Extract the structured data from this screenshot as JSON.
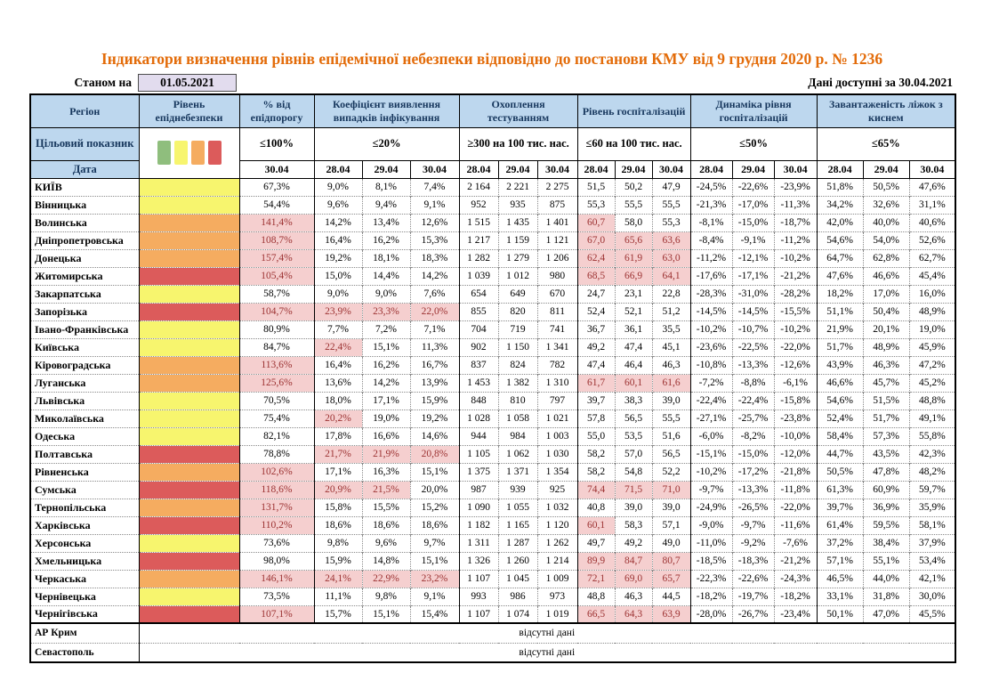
{
  "title": "Індикатори визначення рівнів епідемічної небезпеки відповідно до постанови КМУ від 9 грудня 2020 р. № 1236",
  "meta": {
    "as_of_label": "Станом на",
    "as_of_date": "01.05.2021",
    "available_label": "Дані доступні за",
    "available_date": "30.04.2021"
  },
  "styles": {
    "title_color": "#E36C0A",
    "header_bg": "#BDD7EE",
    "header_text": "#17375D",
    "asof_box_bg": "#E2DCEE",
    "highlight_bg": "#F5CFCF",
    "highlight_text": "#9C3232",
    "level_colors": {
      "green": "#8FBE7D",
      "yellow": "#F7F56E",
      "orange": "#F5AC60",
      "red": "#DC5B5B"
    }
  },
  "header": {
    "region_label": "Регіон",
    "level_label": "Рівень епіднебезпеки",
    "target_label": "Цільовий показник",
    "date_label": "Дата",
    "legend_order": [
      "green",
      "yellow",
      "orange",
      "red"
    ],
    "groups": [
      {
        "label": "% від епідпорогу",
        "threshold": "≤100%",
        "dates": [
          "30.04"
        ]
      },
      {
        "label": "Коефіцієнт виявлення випадків інфікування",
        "threshold": "≤20%",
        "dates": [
          "28.04",
          "29.04",
          "30.04"
        ]
      },
      {
        "label": "Охоплення тестуванням",
        "threshold": "≥300 на 100 тис. нас.",
        "dates": [
          "28.04",
          "29.04",
          "30.04"
        ]
      },
      {
        "label": "Рівень госпіталізацій",
        "threshold": "≤60 на 100 тис. нас.",
        "dates": [
          "28.04",
          "29.04",
          "30.04"
        ]
      },
      {
        "label": "Динаміка рівня госпіталізацій",
        "threshold": "≤50%",
        "dates": [
          "28.04",
          "29.04",
          "30.04"
        ]
      },
      {
        "label": "Завантаженість ліжок з киснем",
        "threshold": "≤65%",
        "dates": [
          "28.04",
          "29.04",
          "30.04"
        ]
      }
    ]
  },
  "rows": [
    {
      "region": "КИЇВ",
      "level": "yellow",
      "vals": [
        "67,3%",
        "9,0%",
        "8,1%",
        "7,4%",
        "2 164",
        "2 221",
        "2 275",
        "51,5",
        "50,2",
        "47,9",
        "-24,5%",
        "-22,6%",
        "-23,9%",
        "51,8%",
        "50,5%",
        "47,6%"
      ],
      "hl": []
    },
    {
      "region": "Вінницька",
      "level": "yellow",
      "vals": [
        "54,4%",
        "9,6%",
        "9,4%",
        "9,1%",
        "952",
        "935",
        "875",
        "55,3",
        "55,5",
        "55,5",
        "-21,3%",
        "-17,0%",
        "-11,3%",
        "34,2%",
        "32,6%",
        "31,1%"
      ],
      "hl": []
    },
    {
      "region": "Волинська",
      "level": "orange",
      "vals": [
        "141,4%",
        "14,2%",
        "13,4%",
        "12,6%",
        "1 515",
        "1 435",
        "1 401",
        "60,7",
        "58,0",
        "55,3",
        "-8,1%",
        "-15,0%",
        "-18,7%",
        "42,0%",
        "40,0%",
        "40,6%"
      ],
      "hl": [
        0,
        7
      ]
    },
    {
      "region": "Дніпропетровська",
      "level": "orange",
      "vals": [
        "108,7%",
        "16,4%",
        "16,2%",
        "15,3%",
        "1 217",
        "1 159",
        "1 121",
        "67,0",
        "65,6",
        "63,6",
        "-8,4%",
        "-9,1%",
        "-11,2%",
        "54,6%",
        "54,0%",
        "52,6%"
      ],
      "hl": [
        0,
        7,
        8,
        9
      ]
    },
    {
      "region": "Донецька",
      "level": "orange",
      "vals": [
        "157,4%",
        "19,2%",
        "18,1%",
        "18,3%",
        "1 282",
        "1 279",
        "1 206",
        "62,4",
        "61,9",
        "63,0",
        "-11,2%",
        "-12,1%",
        "-10,2%",
        "64,7%",
        "62,8%",
        "62,7%"
      ],
      "hl": [
        0,
        7,
        8,
        9
      ]
    },
    {
      "region": "Житомирська",
      "level": "red",
      "vals": [
        "105,4%",
        "15,0%",
        "14,4%",
        "14,2%",
        "1 039",
        "1 012",
        "980",
        "68,5",
        "66,9",
        "64,1",
        "-17,6%",
        "-17,1%",
        "-21,2%",
        "47,6%",
        "46,6%",
        "45,4%"
      ],
      "hl": [
        0,
        7,
        8,
        9
      ]
    },
    {
      "region": "Закарпатська",
      "level": "yellow",
      "vals": [
        "58,7%",
        "9,0%",
        "9,0%",
        "7,6%",
        "654",
        "649",
        "670",
        "24,7",
        "23,1",
        "22,8",
        "-28,3%",
        "-31,0%",
        "-28,2%",
        "18,2%",
        "17,0%",
        "16,0%"
      ],
      "hl": []
    },
    {
      "region": "Запорізька",
      "level": "red",
      "vals": [
        "104,7%",
        "23,9%",
        "23,3%",
        "22,0%",
        "855",
        "820",
        "811",
        "52,4",
        "52,1",
        "51,2",
        "-14,5%",
        "-14,5%",
        "-15,5%",
        "51,1%",
        "50,4%",
        "48,9%"
      ],
      "hl": [
        0,
        1,
        2,
        3
      ]
    },
    {
      "region": "Івано-Франківська",
      "level": "yellow",
      "vals": [
        "80,9%",
        "7,7%",
        "7,2%",
        "7,1%",
        "704",
        "719",
        "741",
        "36,7",
        "36,1",
        "35,5",
        "-10,2%",
        "-10,7%",
        "-10,2%",
        "21,9%",
        "20,1%",
        "19,0%"
      ],
      "hl": []
    },
    {
      "region": "Київська",
      "level": "yellow",
      "vals": [
        "84,7%",
        "22,4%",
        "15,1%",
        "11,3%",
        "902",
        "1 150",
        "1 341",
        "49,2",
        "47,4",
        "45,1",
        "-23,6%",
        "-22,5%",
        "-22,0%",
        "51,7%",
        "48,9%",
        "45,9%"
      ],
      "hl": [
        1
      ]
    },
    {
      "region": "Кіровоградська",
      "level": "orange",
      "vals": [
        "113,6%",
        "16,4%",
        "16,2%",
        "16,7%",
        "837",
        "824",
        "782",
        "47,4",
        "46,4",
        "46,3",
        "-10,8%",
        "-13,3%",
        "-12,6%",
        "43,9%",
        "46,3%",
        "47,2%"
      ],
      "hl": [
        0
      ]
    },
    {
      "region": "Луганська",
      "level": "orange",
      "vals": [
        "125,6%",
        "13,6%",
        "14,2%",
        "13,9%",
        "1 453",
        "1 382",
        "1 310",
        "61,7",
        "60,1",
        "61,6",
        "-7,2%",
        "-8,8%",
        "-6,1%",
        "46,6%",
        "45,7%",
        "45,2%"
      ],
      "hl": [
        0,
        7,
        8,
        9
      ]
    },
    {
      "region": "Львівська",
      "level": "yellow",
      "vals": [
        "70,5%",
        "18,0%",
        "17,1%",
        "15,9%",
        "848",
        "810",
        "797",
        "39,7",
        "38,3",
        "39,0",
        "-22,4%",
        "-22,4%",
        "-15,8%",
        "54,6%",
        "51,5%",
        "48,8%"
      ],
      "hl": []
    },
    {
      "region": "Миколаївська",
      "level": "yellow",
      "vals": [
        "75,4%",
        "20,2%",
        "19,0%",
        "19,2%",
        "1 028",
        "1 058",
        "1 021",
        "57,8",
        "56,5",
        "55,5",
        "-27,1%",
        "-25,7%",
        "-23,8%",
        "52,4%",
        "51,7%",
        "49,1%"
      ],
      "hl": [
        1
      ]
    },
    {
      "region": "Одеська",
      "level": "yellow",
      "vals": [
        "82,1%",
        "17,8%",
        "16,6%",
        "14,6%",
        "944",
        "984",
        "1 003",
        "55,0",
        "53,5",
        "51,6",
        "-6,0%",
        "-8,2%",
        "-10,0%",
        "58,4%",
        "57,3%",
        "55,8%"
      ],
      "hl": []
    },
    {
      "region": "Полтавська",
      "level": "red",
      "vals": [
        "78,8%",
        "21,7%",
        "21,9%",
        "20,8%",
        "1 105",
        "1 062",
        "1 030",
        "58,2",
        "57,0",
        "56,5",
        "-15,1%",
        "-15,0%",
        "-12,0%",
        "44,7%",
        "43,5%",
        "42,3%"
      ],
      "hl": [
        1,
        2,
        3
      ]
    },
    {
      "region": "Рівненська",
      "level": "orange",
      "vals": [
        "102,6%",
        "17,1%",
        "16,3%",
        "15,1%",
        "1 375",
        "1 371",
        "1 354",
        "58,2",
        "54,8",
        "52,2",
        "-10,2%",
        "-17,2%",
        "-21,8%",
        "50,5%",
        "47,8%",
        "48,2%"
      ],
      "hl": [
        0
      ]
    },
    {
      "region": "Сумська",
      "level": "red",
      "vals": [
        "118,6%",
        "20,9%",
        "21,5%",
        "20,0%",
        "987",
        "939",
        "925",
        "74,4",
        "71,5",
        "71,0",
        "-9,7%",
        "-13,3%",
        "-11,8%",
        "61,3%",
        "60,9%",
        "59,7%"
      ],
      "hl": [
        0,
        1,
        2,
        7,
        8,
        9
      ]
    },
    {
      "region": "Тернопільська",
      "level": "orange",
      "vals": [
        "131,7%",
        "15,8%",
        "15,5%",
        "15,2%",
        "1 090",
        "1 055",
        "1 032",
        "40,8",
        "39,0",
        "39,0",
        "-24,9%",
        "-26,5%",
        "-22,0%",
        "39,7%",
        "36,9%",
        "35,9%"
      ],
      "hl": [
        0
      ]
    },
    {
      "region": "Харківська",
      "level": "red",
      "vals": [
        "110,2%",
        "18,6%",
        "18,6%",
        "18,6%",
        "1 182",
        "1 165",
        "1 120",
        "60,1",
        "58,3",
        "57,1",
        "-9,0%",
        "-9,7%",
        "-11,6%",
        "61,4%",
        "59,5%",
        "58,1%"
      ],
      "hl": [
        0,
        7
      ]
    },
    {
      "region": "Херсонська",
      "level": "yellow",
      "vals": [
        "73,6%",
        "9,8%",
        "9,6%",
        "9,7%",
        "1 311",
        "1 287",
        "1 262",
        "49,7",
        "49,2",
        "49,0",
        "-11,0%",
        "-9,2%",
        "-7,6%",
        "37,2%",
        "38,4%",
        "37,9%"
      ],
      "hl": []
    },
    {
      "region": "Хмельницька",
      "level": "red",
      "vals": [
        "98,0%",
        "15,9%",
        "14,8%",
        "15,1%",
        "1 326",
        "1 260",
        "1 214",
        "89,9",
        "84,7",
        "80,7",
        "-18,5%",
        "-18,3%",
        "-21,2%",
        "57,1%",
        "55,1%",
        "53,4%"
      ],
      "hl": [
        7,
        8,
        9
      ]
    },
    {
      "region": "Черкаська",
      "level": "orange",
      "vals": [
        "146,1%",
        "24,1%",
        "22,9%",
        "23,2%",
        "1 107",
        "1 045",
        "1 009",
        "72,1",
        "69,0",
        "65,7",
        "-22,3%",
        "-22,6%",
        "-24,3%",
        "46,5%",
        "44,0%",
        "42,1%"
      ],
      "hl": [
        0,
        1,
        2,
        3,
        7,
        8,
        9
      ]
    },
    {
      "region": "Чернівецька",
      "level": "yellow",
      "vals": [
        "73,5%",
        "11,1%",
        "9,8%",
        "9,1%",
        "993",
        "986",
        "973",
        "48,8",
        "46,3",
        "44,5",
        "-18,2%",
        "-19,7%",
        "-18,2%",
        "33,1%",
        "31,8%",
        "30,0%"
      ],
      "hl": []
    },
    {
      "region": "Чернігівська",
      "level": "red",
      "vals": [
        "107,1%",
        "15,7%",
        "15,1%",
        "15,4%",
        "1 107",
        "1 074",
        "1 019",
        "66,5",
        "64,3",
        "63,9",
        "-28,0%",
        "-26,7%",
        "-23,4%",
        "50,1%",
        "47,0%",
        "45,5%"
      ],
      "hl": [
        0,
        7,
        8,
        9
      ]
    }
  ],
  "no_data": {
    "text": "відсутні дані",
    "regions": [
      "АР Крим",
      "Севастополь"
    ]
  }
}
